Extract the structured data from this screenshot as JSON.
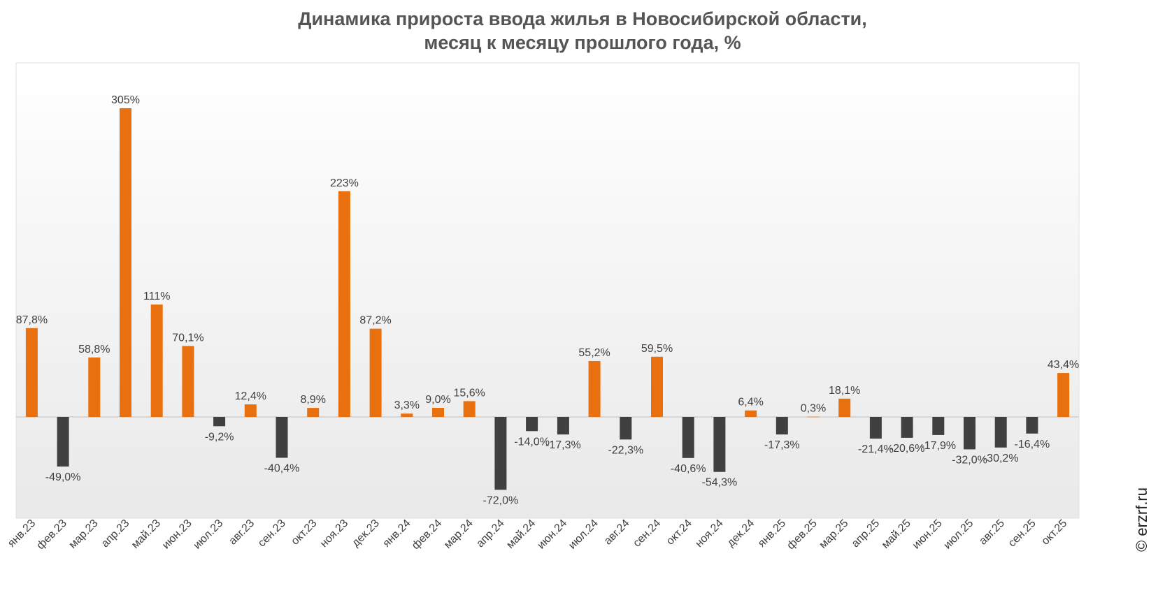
{
  "title_line1": "Динамика прироста ввода жилья в Новосибирской области,",
  "title_line2": "месяц к месяцу прошлого года, %",
  "watermark": "© erzrf.ru",
  "colors": {
    "positive": "#E8700E",
    "negative": "#404040",
    "label": "#404040"
  },
  "chart_data": {
    "type": "bar",
    "title": "Динамика прироста ввода жилья в Новосибирской области, месяц к месяцу прошлого года, %",
    "categories": [
      "янв.23",
      "фев.23",
      "мар.23",
      "апр.23",
      "май.23",
      "июн.23",
      "июл.23",
      "авг.23",
      "сен.23",
      "окт.23",
      "ноя.23",
      "дек.23",
      "янв.24",
      "фев.24",
      "мар.24",
      "апр.24",
      "май.24",
      "июн.24",
      "июл.24",
      "авг.24",
      "сен.24",
      "окт.24",
      "ноя.24",
      "дек.24",
      "янв.25",
      "фев.25",
      "мар.25",
      "апр.25",
      "май.25",
      "июн.25",
      "июл.25",
      "авг.25",
      "сен.25",
      "окт.25"
    ],
    "values": [
      87.8,
      -49.0,
      58.8,
      305,
      111,
      70.1,
      -9.2,
      12.4,
      -40.4,
      8.9,
      223,
      87.2,
      3.3,
      9.0,
      15.6,
      -72.0,
      -14.0,
      -17.3,
      55.2,
      -22.3,
      59.5,
      -40.6,
      -54.3,
      6.4,
      -17.3,
      0.3,
      18.1,
      -21.4,
      -20.6,
      -17.9,
      -32.0,
      -30.2,
      -16.4,
      43.4
    ],
    "labels": [
      "87,8%",
      "-49,0%",
      "58,8%",
      "305%",
      "111%",
      "70,1%",
      "-9,2%",
      "12,4%",
      "-40,4%",
      "8,9%",
      "223%",
      "87,2%",
      "3,3%",
      "9,0%",
      "15,6%",
      "-72,0%",
      "-14,0%",
      "-17,3%",
      "55,2%",
      "-22,3%",
      "59,5%",
      "-40,6%",
      "-54,3%",
      "6,4%",
      "-17,3%",
      "0,3%",
      "18,1%",
      "-21,4%",
      "-20,6%",
      "-17,9%",
      "-32,0%",
      "-30,2%",
      "-16,4%",
      "43,4%"
    ],
    "ylim": [
      -100,
      350
    ],
    "grid": false,
    "legend": "none"
  }
}
